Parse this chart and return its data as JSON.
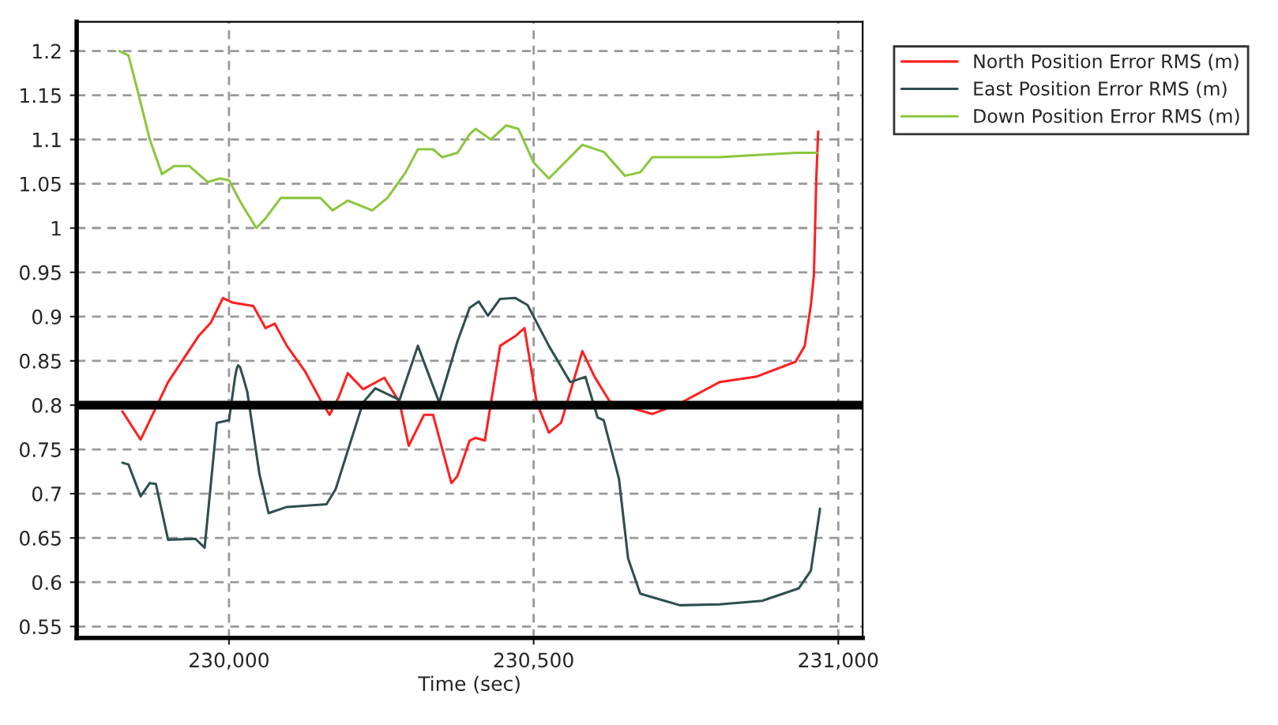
{
  "chart_data": {
    "type": "line",
    "xlabel": "Time (sec)",
    "xlim": [
      229750,
      231040
    ],
    "ylim": [
      0.537,
      1.233
    ],
    "xticks": [
      {
        "value": 230000,
        "label": "230,000"
      },
      {
        "value": 230500,
        "label": "230,500"
      },
      {
        "value": 231000,
        "label": "231,000"
      }
    ],
    "yticks": [
      0.55,
      0.6,
      0.65,
      0.7,
      0.75,
      0.8,
      0.85,
      0.9,
      0.95,
      1,
      1.05,
      1.1,
      1.15,
      1.2
    ],
    "grid": true,
    "legend": "top right",
    "marker": "none",
    "line_style": "solid",
    "ref_lines": [
      {
        "axis": "y",
        "value": 0.8,
        "color": "#000000"
      }
    ],
    "series": [
      {
        "name": "North Position Error RMS (m)",
        "color": "#ff2020",
        "x": [
          229825,
          229855,
          229880,
          229900,
          229950,
          229970,
          229990,
          230005,
          230040,
          230060,
          230075,
          230095,
          230125,
          230150,
          230165,
          230180,
          230195,
          230220,
          230255,
          230280,
          230295,
          230320,
          230335,
          230365,
          230375,
          230395,
          230405,
          230420,
          230445,
          230470,
          230485,
          230505,
          230525,
          230545,
          230580,
          230600,
          230625,
          230695,
          230740,
          230805,
          230865,
          230930,
          230945,
          230955,
          230960,
          230964,
          230967
        ],
        "values": [
          0.793,
          0.761,
          0.797,
          0.826,
          0.878,
          0.893,
          0.921,
          0.916,
          0.912,
          0.887,
          0.892,
          0.867,
          0.838,
          0.806,
          0.789,
          0.809,
          0.836,
          0.818,
          0.831,
          0.803,
          0.754,
          0.789,
          0.789,
          0.712,
          0.72,
          0.76,
          0.763,
          0.76,
          0.867,
          0.878,
          0.887,
          0.803,
          0.769,
          0.78,
          0.861,
          0.832,
          0.804,
          0.79,
          0.802,
          0.826,
          0.832,
          0.849,
          0.867,
          0.913,
          0.947,
          1.057,
          1.109
        ]
      },
      {
        "name": "East Position Error RMS (m)",
        "color": "#2f4f4f",
        "x": [
          229825,
          229835,
          229855,
          229870,
          229880,
          229900,
          229945,
          229960,
          229980,
          230000,
          230010,
          230013,
          230015,
          230018,
          230023,
          230030,
          230050,
          230065,
          230095,
          230160,
          230175,
          230220,
          230240,
          230280,
          230310,
          230345,
          230375,
          230395,
          230410,
          230425,
          230445,
          230470,
          230490,
          230525,
          230560,
          230585,
          230605,
          230615,
          230640,
          230655,
          230675,
          230740,
          230805,
          230875,
          230935,
          230955,
          230970
        ],
        "values": [
          0.735,
          0.733,
          0.697,
          0.712,
          0.711,
          0.648,
          0.649,
          0.639,
          0.78,
          0.783,
          0.832,
          0.842,
          0.845,
          0.843,
          0.832,
          0.815,
          0.722,
          0.678,
          0.685,
          0.688,
          0.705,
          0.803,
          0.819,
          0.806,
          0.867,
          0.803,
          0.872,
          0.91,
          0.917,
          0.901,
          0.92,
          0.921,
          0.913,
          0.867,
          0.826,
          0.832,
          0.786,
          0.783,
          0.717,
          0.627,
          0.587,
          0.574,
          0.575,
          0.579,
          0.593,
          0.613,
          0.683
        ]
      },
      {
        "name": "Down Position Error RMS (m)",
        "color": "#8cc63f",
        "x": [
          229820,
          229835,
          229850,
          229870,
          229890,
          229910,
          229935,
          229965,
          229985,
          230000,
          230020,
          230045,
          230060,
          230085,
          230150,
          230170,
          230195,
          230235,
          230260,
          230290,
          230310,
          230335,
          230350,
          230375,
          230395,
          230405,
          230430,
          230455,
          230475,
          230500,
          230525,
          230580,
          230615,
          230650,
          230675,
          230695,
          230805,
          230855,
          230930,
          230965
        ],
        "values": [
          1.2,
          1.195,
          1.155,
          1.1,
          1.061,
          1.07,
          1.07,
          1.052,
          1.056,
          1.054,
          1.028,
          1.0,
          1.011,
          1.034,
          1.034,
          1.02,
          1.031,
          1.02,
          1.034,
          1.063,
          1.089,
          1.089,
          1.08,
          1.085,
          1.106,
          1.112,
          1.1,
          1.116,
          1.112,
          1.074,
          1.056,
          1.094,
          1.086,
          1.059,
          1.063,
          1.08,
          1.08,
          1.082,
          1.085,
          1.085
        ]
      }
    ]
  }
}
